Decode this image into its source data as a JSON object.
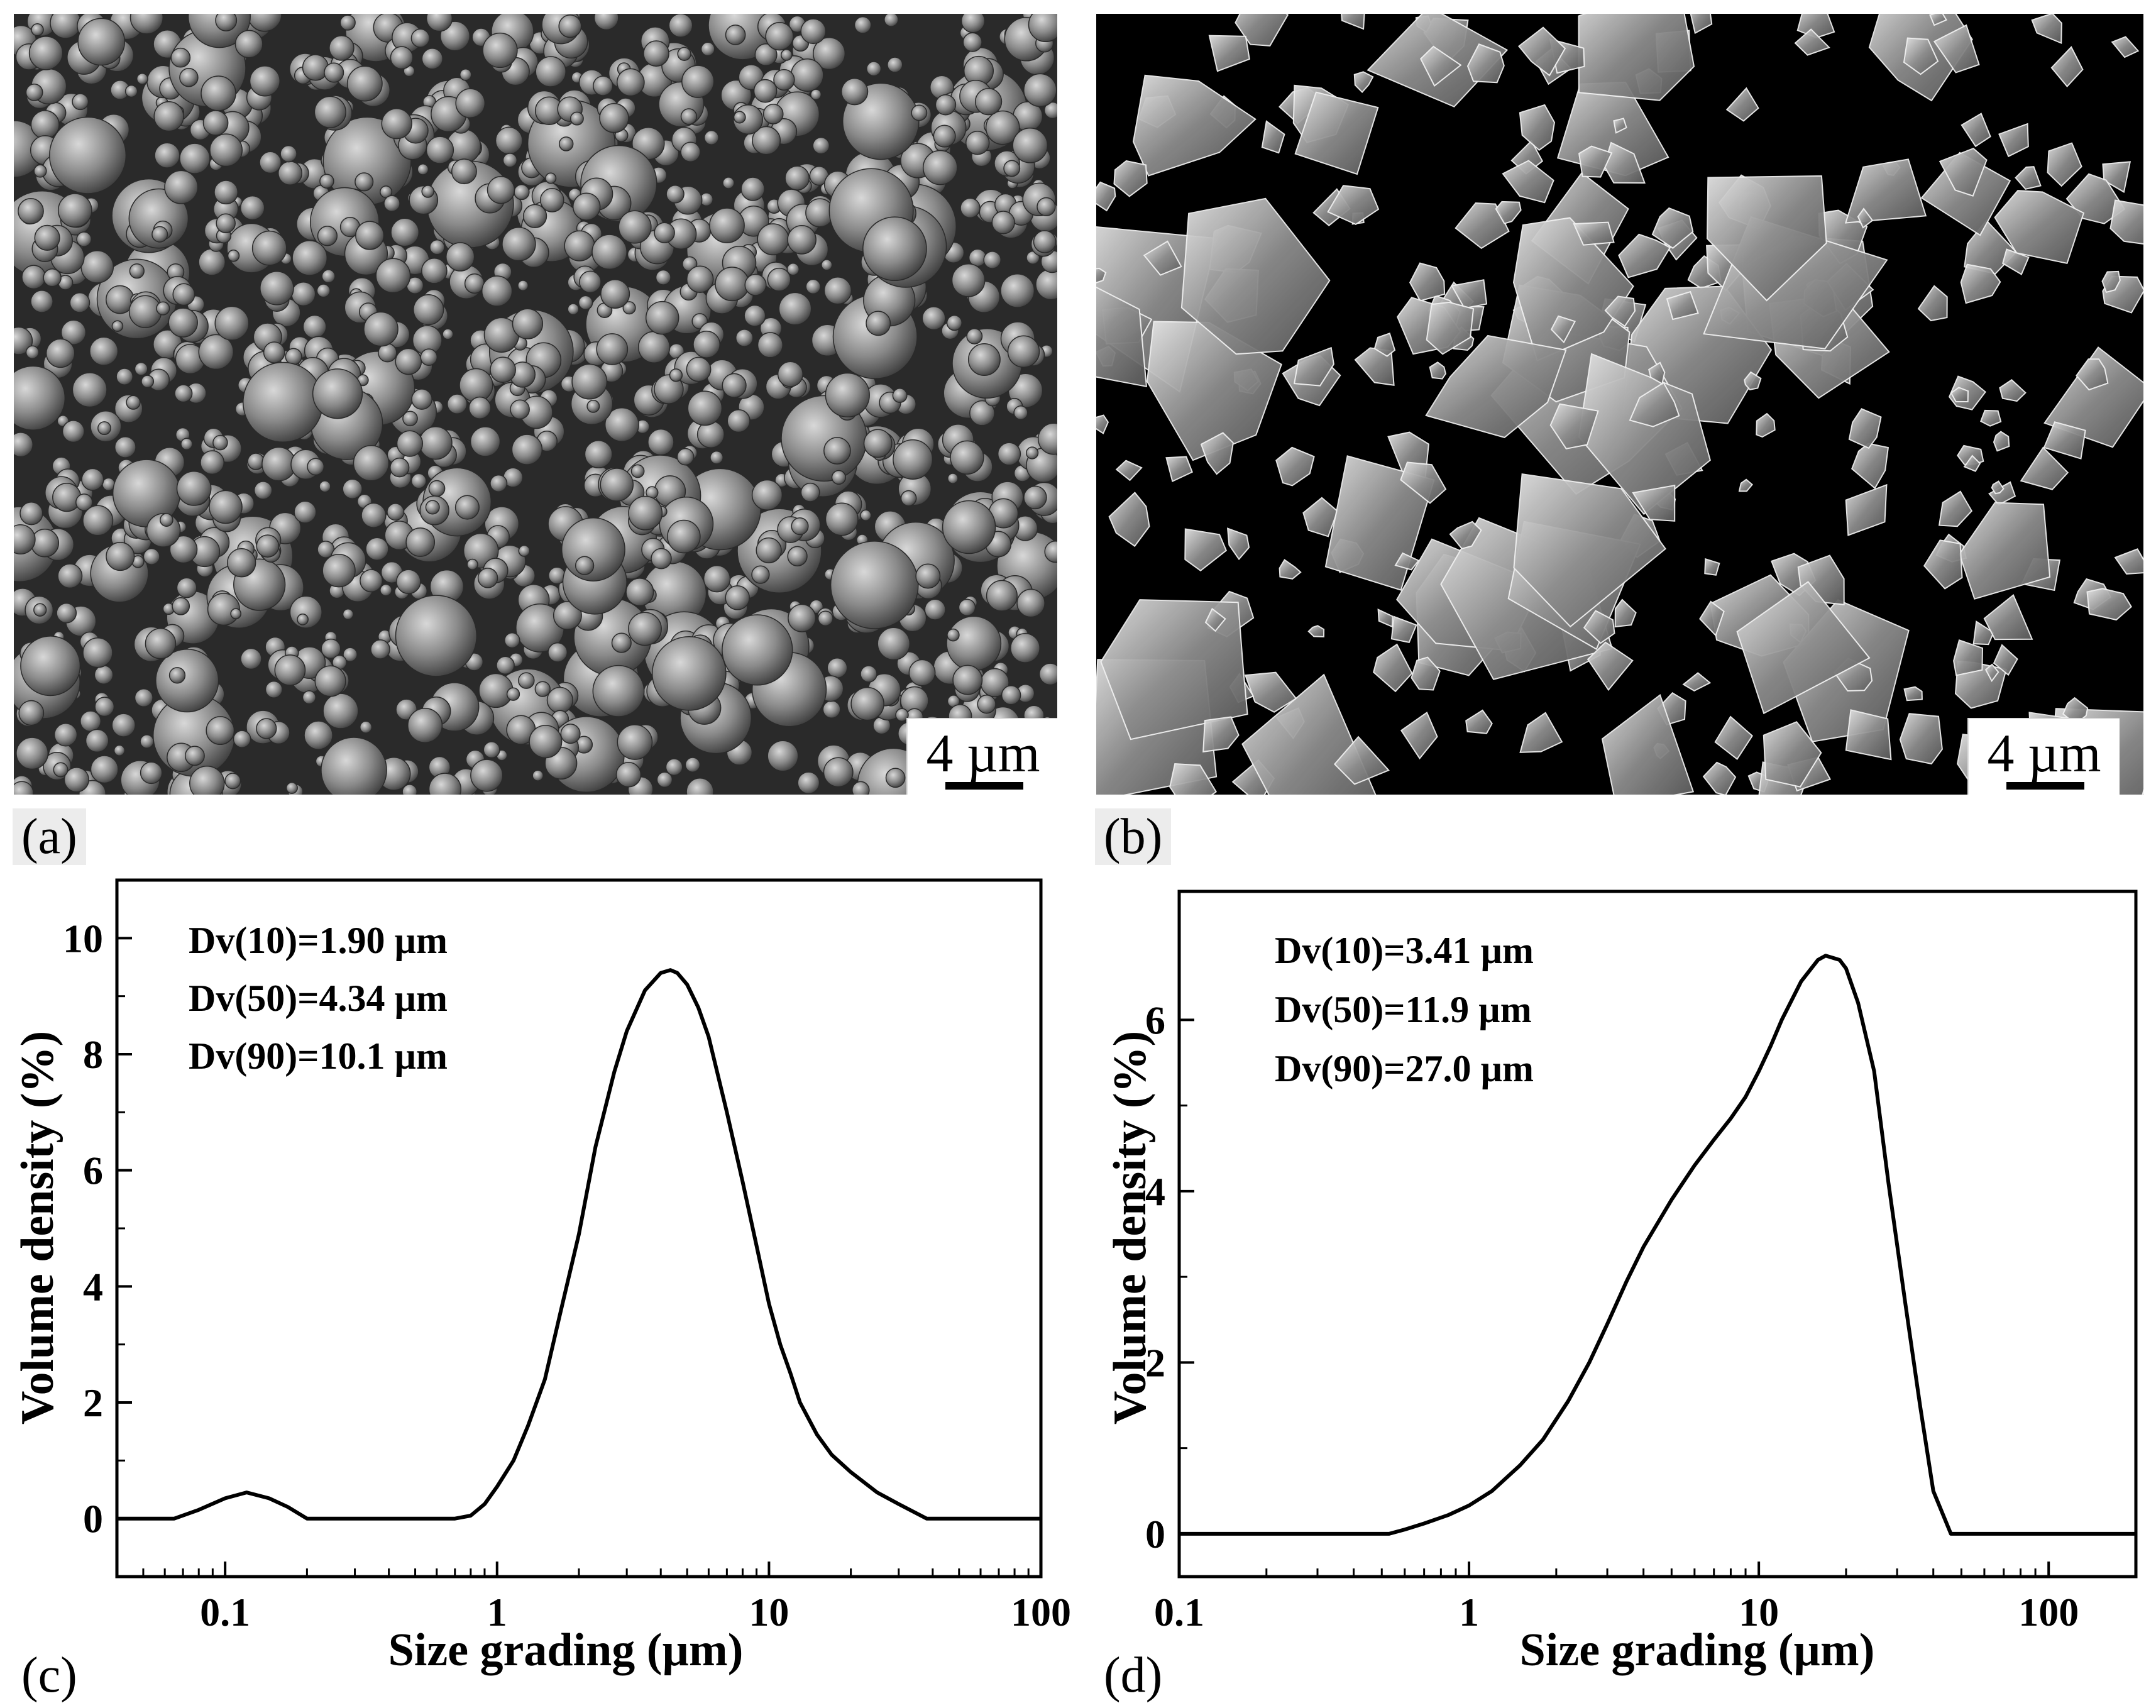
{
  "panels": {
    "a": {
      "label": "(a)",
      "scale_bar": "4 µm"
    },
    "b": {
      "label": "(b)",
      "scale_bar": "4 µm"
    },
    "c": {
      "label": "(c)",
      "annotations": [
        "Dv(10)=1.90 µm",
        "Dv(50)=4.34 µm",
        "Dv(90)=10.1 µm"
      ]
    },
    "d": {
      "label": "(d)",
      "annotations": [
        "Dv(10)=3.41 µm",
        "Dv(50)=11.9 µm",
        "Dv(90)=27.0 µm"
      ]
    }
  },
  "chart_data": [
    {
      "type": "line",
      "panel": "c",
      "xlabel": "Size grading (µm)",
      "ylabel": "Volume density (%)",
      "x_scale": "log",
      "xlim": [
        0.04,
        100
      ],
      "ylim": [
        -1,
        11
      ],
      "x_ticks": [
        0.1,
        1,
        10,
        100
      ],
      "x_tick_labels": [
        "0.1",
        "1",
        "10",
        "100"
      ],
      "y_ticks": [
        0,
        2,
        4,
        6,
        8,
        10
      ],
      "y_tick_labels": [
        "0",
        "2",
        "4",
        "6",
        "8",
        "10"
      ],
      "grid": false,
      "series": [
        {
          "x": [
            0.04,
            0.065,
            0.08,
            0.1,
            0.12,
            0.145,
            0.17,
            0.2,
            0.3,
            0.5,
            0.7,
            0.8,
            0.9,
            1.0,
            1.15,
            1.3,
            1.5,
            1.7,
            2.0,
            2.3,
            2.7,
            3.0,
            3.5,
            4.0,
            4.34,
            4.6,
            5.0,
            5.5,
            6.0,
            7.0,
            8.0,
            9.0,
            10.0,
            11.0,
            12.0,
            13.0,
            15.0,
            17.0,
            20.0,
            25.0,
            30.0,
            38.0,
            50.0,
            100.0
          ],
          "y": [
            0,
            0,
            0.15,
            0.35,
            0.45,
            0.35,
            0.2,
            0,
            0,
            0,
            0,
            0.05,
            0.25,
            0.55,
            1.0,
            1.6,
            2.4,
            3.5,
            4.9,
            6.4,
            7.7,
            8.4,
            9.1,
            9.4,
            9.45,
            9.4,
            9.2,
            8.8,
            8.3,
            7.0,
            5.8,
            4.7,
            3.7,
            3.0,
            2.5,
            2.0,
            1.45,
            1.1,
            0.8,
            0.45,
            0.25,
            0,
            0,
            0
          ]
        }
      ]
    },
    {
      "type": "line",
      "panel": "d",
      "xlabel": "Size grading (µm)",
      "ylabel": "Volume density (%)",
      "x_scale": "log",
      "xlim": [
        0.1,
        200
      ],
      "ylim": [
        -0.5,
        7.5
      ],
      "x_ticks": [
        0.1,
        1,
        10,
        100
      ],
      "x_tick_labels": [
        "0.1",
        "1",
        "10",
        "100"
      ],
      "y_ticks": [
        0,
        2,
        4,
        6
      ],
      "y_tick_labels": [
        "0",
        "2",
        "4",
        "6"
      ],
      "grid": false,
      "series": [
        {
          "x": [
            0.1,
            0.3,
            0.53,
            0.6,
            0.7,
            0.85,
            1.0,
            1.2,
            1.5,
            1.8,
            2.2,
            2.6,
            3.0,
            3.5,
            4.0,
            5.0,
            6.0,
            7.0,
            8.0,
            9.0,
            10.0,
            11.0,
            12.0,
            14.0,
            16.0,
            17.0,
            19.0,
            20.0,
            22.0,
            25.0,
            28.0,
            32.0,
            36.0,
            40.0,
            46.0,
            60.0,
            100.0,
            200.0
          ],
          "y": [
            0,
            0,
            0,
            0.05,
            0.12,
            0.22,
            0.33,
            0.5,
            0.8,
            1.1,
            1.55,
            2.0,
            2.45,
            2.95,
            3.35,
            3.9,
            4.3,
            4.6,
            4.85,
            5.1,
            5.4,
            5.7,
            6.0,
            6.45,
            6.7,
            6.75,
            6.7,
            6.6,
            6.2,
            5.4,
            4.1,
            2.7,
            1.5,
            0.5,
            0,
            0,
            0,
            0
          ]
        }
      ]
    }
  ]
}
